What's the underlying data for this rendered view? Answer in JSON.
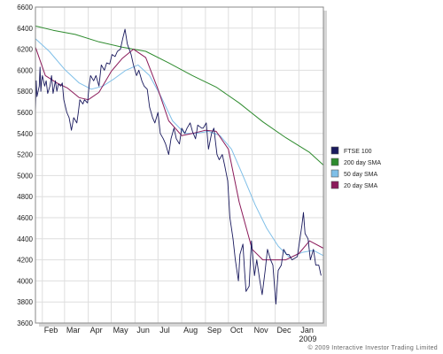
{
  "chart_data": {
    "type": "line",
    "title": "",
    "xlabel": "",
    "ylabel": "",
    "ylim": [
      3600,
      6600
    ],
    "y_ticks": [
      3600,
      3800,
      4000,
      4200,
      4400,
      4600,
      4800,
      5000,
      5200,
      5400,
      5600,
      5800,
      6000,
      6200,
      6400,
      6600
    ],
    "x_range": [
      "2008-01-23",
      "2009-02-02"
    ],
    "x_ticks": [
      {
        "date": "2008-02-01",
        "label": "Feb"
      },
      {
        "date": "2008-03-01",
        "label": "Mar"
      },
      {
        "date": "2008-04-01",
        "label": "Apr"
      },
      {
        "date": "2008-05-01",
        "label": "May"
      },
      {
        "date": "2008-06-01",
        "label": "Jun"
      },
      {
        "date": "2008-07-01",
        "label": "Jul"
      },
      {
        "date": "2008-08-01",
        "label": "Aug"
      },
      {
        "date": "2008-09-01",
        "label": "Sep"
      },
      {
        "date": "2008-10-01",
        "label": "Oct"
      },
      {
        "date": "2008-11-01",
        "label": "Nov"
      },
      {
        "date": "2008-12-01",
        "label": "Dec"
      },
      {
        "date": "2009-01-01",
        "label": "Jan"
      }
    ],
    "year_label": {
      "date": "2009-01-01",
      "text": "2009"
    },
    "grid": true,
    "legend_position": "right",
    "series": [
      {
        "name": "FTSE 100",
        "color": "#1a1a5e",
        "x": [
          "2008-01-23",
          "2008-01-24",
          "2008-01-25",
          "2008-01-28",
          "2008-01-29",
          "2008-01-30",
          "2008-01-31",
          "2008-02-01",
          "2008-02-04",
          "2008-02-06",
          "2008-02-08",
          "2008-02-11",
          "2008-02-13",
          "2008-02-15",
          "2008-02-18",
          "2008-02-20",
          "2008-02-22",
          "2008-02-25",
          "2008-02-27",
          "2008-02-29",
          "2008-03-04",
          "2008-03-07",
          "2008-03-10",
          "2008-03-13",
          "2008-03-17",
          "2008-03-19",
          "2008-03-21",
          "2008-03-25",
          "2008-03-27",
          "2008-03-31",
          "2008-04-02",
          "2008-04-04",
          "2008-04-08",
          "2008-04-11",
          "2008-04-15",
          "2008-04-18",
          "2008-04-22",
          "2008-04-25",
          "2008-04-29",
          "2008-05-02",
          "2008-05-06",
          "2008-05-09",
          "2008-05-13",
          "2008-05-16",
          "2008-05-19",
          "2008-05-22",
          "2008-05-27",
          "2008-05-30",
          "2008-06-03",
          "2008-06-06",
          "2008-06-10",
          "2008-06-13",
          "2008-06-17",
          "2008-06-20",
          "2008-06-24",
          "2008-06-27",
          "2008-07-01",
          "2008-07-04",
          "2008-07-08",
          "2008-07-11",
          "2008-07-15",
          "2008-07-18",
          "2008-07-22",
          "2008-07-25",
          "2008-07-29",
          "2008-08-01",
          "2008-08-05",
          "2008-08-08",
          "2008-08-12",
          "2008-08-15",
          "2008-08-19",
          "2008-08-22",
          "2008-08-27",
          "2008-08-29",
          "2008-09-02",
          "2008-09-05",
          "2008-09-09",
          "2008-09-12",
          "2008-09-16",
          "2008-09-19",
          "2008-09-23",
          "2008-09-26",
          "2008-09-30",
          "2008-10-03",
          "2008-10-07",
          "2008-10-10",
          "2008-10-14",
          "2008-10-16",
          "2008-10-20",
          "2008-10-22",
          "2008-10-24",
          "2008-10-28",
          "2008-10-31",
          "2008-11-04",
          "2008-11-07",
          "2008-11-11",
          "2008-11-14",
          "2008-11-18",
          "2008-11-21",
          "2008-11-25",
          "2008-11-28",
          "2008-12-02",
          "2008-12-05",
          "2008-12-09",
          "2008-12-12",
          "2008-12-16",
          "2008-12-19",
          "2008-12-23",
          "2008-12-30",
          "2009-01-05",
          "2009-01-07",
          "2009-01-09",
          "2009-01-13",
          "2009-01-16",
          "2009-01-20",
          "2009-01-23",
          "2009-01-27",
          "2009-01-30"
        ],
        "values": [
          5600,
          5900,
          5750,
          5850,
          6030,
          5800,
          5900,
          5950,
          5850,
          5900,
          5780,
          5850,
          5950,
          5780,
          5900,
          5800,
          5870,
          5850,
          5880,
          5720,
          5600,
          5550,
          5430,
          5550,
          5500,
          5600,
          5720,
          5680,
          5720,
          5690,
          5850,
          5950,
          5900,
          5950,
          5850,
          6050,
          6000,
          6070,
          6060,
          6150,
          6130,
          6180,
          6200,
          6300,
          6390,
          6250,
          6150,
          6050,
          5950,
          6000,
          5900,
          5850,
          5820,
          5650,
          5550,
          5500,
          5600,
          5400,
          5350,
          5300,
          5200,
          5350,
          5450,
          5350,
          5300,
          5450,
          5400,
          5450,
          5500,
          5420,
          5350,
          5480,
          5450,
          5450,
          5500,
          5250,
          5400,
          5450,
          5200,
          5150,
          5200,
          5100,
          4950,
          4600,
          4400,
          4200,
          4000,
          4250,
          4350,
          4100,
          3900,
          3950,
          4380,
          4050,
          4200,
          4000,
          3870,
          4100,
          4300,
          4200,
          4150,
          3780,
          4100,
          4150,
          4300,
          4250,
          4250,
          4200,
          4230,
          4530,
          4650,
          4450,
          4400,
          4200,
          4300,
          4150,
          4150,
          4050
        ]
      },
      {
        "name": "200 day SMA",
        "color": "#2e8b2e",
        "x": [
          "2008-01-23",
          "2008-02-15",
          "2008-03-15",
          "2008-04-15",
          "2008-05-15",
          "2008-06-15",
          "2008-07-15",
          "2008-08-15",
          "2008-09-15",
          "2008-10-15",
          "2008-11-15",
          "2008-12-15",
          "2009-01-15",
          "2009-02-02"
        ],
        "values": [
          6420,
          6380,
          6340,
          6270,
          6220,
          6180,
          6070,
          5950,
          5840,
          5690,
          5510,
          5360,
          5220,
          5100
        ]
      },
      {
        "name": "50 day SMA",
        "color": "#7fbfe8",
        "x": [
          "2008-01-23",
          "2008-02-10",
          "2008-03-01",
          "2008-03-20",
          "2008-04-05",
          "2008-04-20",
          "2008-05-05",
          "2008-05-20",
          "2008-06-05",
          "2008-06-20",
          "2008-07-05",
          "2008-07-20",
          "2008-08-05",
          "2008-08-20",
          "2008-09-05",
          "2008-09-20",
          "2008-10-05",
          "2008-10-20",
          "2008-11-05",
          "2008-11-20",
          "2008-12-05",
          "2008-12-20",
          "2009-01-05",
          "2009-01-20",
          "2009-02-02"
        ],
        "values": [
          6300,
          6180,
          6010,
          5880,
          5820,
          5850,
          5920,
          6000,
          6050,
          5950,
          5750,
          5520,
          5400,
          5400,
          5420,
          5380,
          5250,
          5000,
          4720,
          4500,
          4330,
          4220,
          4270,
          4290,
          4240
        ]
      },
      {
        "name": "20 day SMA",
        "color": "#8b1a5a",
        "x": [
          "2008-01-23",
          "2008-02-05",
          "2008-02-20",
          "2008-03-05",
          "2008-03-20",
          "2008-04-01",
          "2008-04-15",
          "2008-05-01",
          "2008-05-15",
          "2008-05-30",
          "2008-06-15",
          "2008-07-01",
          "2008-07-15",
          "2008-08-01",
          "2008-08-15",
          "2008-09-01",
          "2008-09-15",
          "2008-10-01",
          "2008-10-15",
          "2008-11-01",
          "2008-11-15",
          "2008-12-01",
          "2008-12-15",
          "2009-01-01",
          "2009-01-15",
          "2009-02-02"
        ],
        "values": [
          6220,
          5950,
          5880,
          5830,
          5740,
          5720,
          5790,
          5990,
          6110,
          6200,
          6120,
          5820,
          5520,
          5380,
          5400,
          5430,
          5420,
          5250,
          4750,
          4300,
          4200,
          4200,
          4200,
          4260,
          4380,
          4310
        ]
      }
    ],
    "legend_order": [
      "FTSE 100",
      "200 day SMA",
      "50 day SMA",
      "20 day SMA"
    ]
  },
  "footer": {
    "copyright": "© 2009 Interactive Investor Trading Limited"
  }
}
